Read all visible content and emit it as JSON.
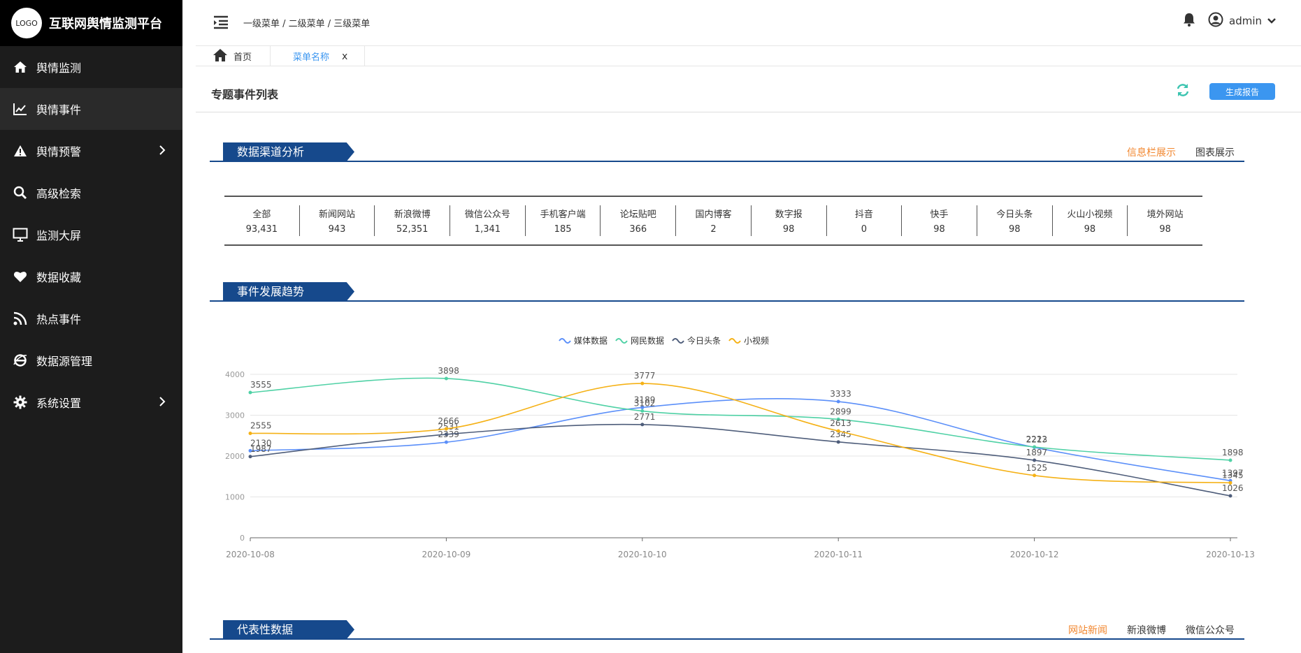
{
  "brand": {
    "logo_text": "LOGO",
    "title": "互联网舆情监测平台"
  },
  "sidebar": {
    "items": [
      {
        "label": "舆情监测",
        "icon": "home-icon",
        "active": false,
        "arrow": false
      },
      {
        "label": "舆情事件",
        "icon": "chart-line-icon",
        "active": true,
        "arrow": false
      },
      {
        "label": "舆情预警",
        "icon": "warning-icon",
        "active": false,
        "arrow": true
      },
      {
        "label": "高级检索",
        "icon": "search-icon",
        "active": false,
        "arrow": false
      },
      {
        "label": "监测大屏",
        "icon": "monitor-icon",
        "active": false,
        "arrow": false
      },
      {
        "label": "数据收藏",
        "icon": "heart-icon",
        "active": false,
        "arrow": false
      },
      {
        "label": "热点事件",
        "icon": "rss-icon",
        "active": false,
        "arrow": false
      },
      {
        "label": "数据源管理",
        "icon": "ie-icon",
        "active": false,
        "arrow": false
      },
      {
        "label": "系统设置",
        "icon": "gear-icon",
        "active": false,
        "arrow": true
      }
    ]
  },
  "header": {
    "breadcrumb": "一级菜单 / 二级菜单 / 三级菜单",
    "username": "admin"
  },
  "tabs": {
    "home": "首页",
    "menu": "菜单名称",
    "close": "x"
  },
  "page": {
    "title": "专题事件列表",
    "generate_button": "生成报告"
  },
  "sections": {
    "channels": {
      "title": "数据渠道分析",
      "switch": [
        "信息栏展示",
        "图表展示"
      ]
    },
    "trend": {
      "title": "事件发展趋势"
    },
    "representative": {
      "title": "代表性数据",
      "switch": [
        "网站新闻",
        "新浪微博",
        "微信公众号"
      ]
    }
  },
  "channels": [
    {
      "name": "全部",
      "value": "93,431"
    },
    {
      "name": "新闻网站",
      "value": "943"
    },
    {
      "name": "新浪微博",
      "value": "52,351"
    },
    {
      "name": "微信公众号",
      "value": "1,341"
    },
    {
      "name": "手机客户端",
      "value": "185"
    },
    {
      "name": "论坛贴吧",
      "value": "366"
    },
    {
      "name": "国内博客",
      "value": "2"
    },
    {
      "name": "数字报",
      "value": "98"
    },
    {
      "name": "抖音",
      "value": "0"
    },
    {
      "name": "快手",
      "value": "98"
    },
    {
      "name": "今日头条",
      "value": "98"
    },
    {
      "name": "火山小视频",
      "value": "98"
    },
    {
      "name": "境外网站",
      "value": "98"
    }
  ],
  "colors": {
    "accent": "#3b96f0",
    "section": "#16498c",
    "active_switch": "#f2872f",
    "sidebar_bg": "#1c1c1c"
  },
  "chart_data": {
    "type": "line",
    "x": [
      "2020-10-08",
      "2020-10-09",
      "2020-10-10",
      "2020-10-11",
      "2020-10-12",
      "2020-10-13"
    ],
    "ylim": [
      0,
      4000
    ],
    "yticks": [
      0,
      1000,
      2000,
      3000,
      4000
    ],
    "grid": true,
    "legend": "top-center",
    "series": [
      {
        "name": "媒体数据",
        "color": "#5b8ff9",
        "values": [
          2130,
          2339,
          3189,
          3333,
          2213,
          1397
        ]
      },
      {
        "name": "网民数据",
        "color": "#4fd1a5",
        "values": [
          3555,
          3898,
          3102,
          2899,
          2222,
          1898
        ]
      },
      {
        "name": "今日头条",
        "color": "#4e5d7a",
        "values": [
          1987,
          2531,
          2771,
          2345,
          1897,
          1026
        ]
      },
      {
        "name": "小视频",
        "color": "#f5b115",
        "values": [
          2555,
          2666,
          3777,
          2613,
          1525,
          1345
        ]
      }
    ]
  }
}
